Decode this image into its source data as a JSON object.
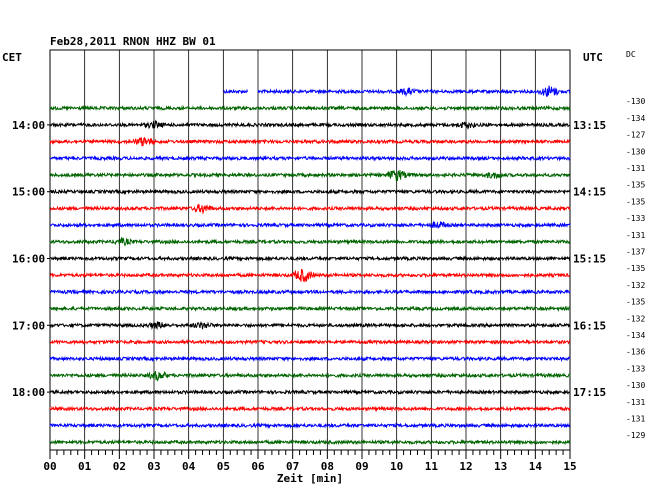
{
  "chart_data": {
    "type": "line",
    "title": "Feb28,2011   RNON HHZ BW 01",
    "left_zone": "CET",
    "right_zone": "UTC",
    "dc_label": "DC",
    "xlabel": "Zeit [min]",
    "xlim": [
      0,
      15
    ],
    "x_ticks": [
      "00",
      "01",
      "02",
      "03",
      "04",
      "05",
      "06",
      "07",
      "08",
      "09",
      "10",
      "11",
      "12",
      "13",
      "14",
      "15"
    ],
    "row_colors": [
      "#0000ff",
      "#006400",
      "#000000",
      "#ff0000"
    ],
    "rows": [
      {
        "row": 0,
        "left": "",
        "right": "",
        "dc": ""
      },
      {
        "row": 1,
        "left": "",
        "right": "",
        "dc": "-130"
      },
      {
        "row": 2,
        "left": "14:00",
        "right": "13:15",
        "dc": "-134"
      },
      {
        "row": 3,
        "left": "",
        "right": "",
        "dc": "-127"
      },
      {
        "row": 4,
        "left": "",
        "right": "",
        "dc": "-130"
      },
      {
        "row": 5,
        "left": "",
        "right": "",
        "dc": "-131"
      },
      {
        "row": 6,
        "left": "15:00",
        "right": "14:15",
        "dc": "-135"
      },
      {
        "row": 7,
        "left": "",
        "right": "",
        "dc": "-135"
      },
      {
        "row": 8,
        "left": "",
        "right": "",
        "dc": "-133"
      },
      {
        "row": 9,
        "left": "",
        "right": "",
        "dc": "-131"
      },
      {
        "row": 10,
        "left": "16:00",
        "right": "15:15",
        "dc": "-137"
      },
      {
        "row": 11,
        "left": "",
        "right": "",
        "dc": "-135"
      },
      {
        "row": 12,
        "left": "",
        "right": "",
        "dc": "-132"
      },
      {
        "row": 13,
        "left": "",
        "right": "",
        "dc": "-135"
      },
      {
        "row": 14,
        "left": "17:00",
        "right": "16:15",
        "dc": "-132"
      },
      {
        "row": 15,
        "left": "",
        "right": "",
        "dc": "-134"
      },
      {
        "row": 16,
        "left": "",
        "right": "",
        "dc": "-136"
      },
      {
        "row": 17,
        "left": "",
        "right": "",
        "dc": "-133"
      },
      {
        "row": 18,
        "left": "18:00",
        "right": "17:15",
        "dc": "-130"
      },
      {
        "row": 19,
        "left": "",
        "right": "",
        "dc": "-131"
      },
      {
        "row": 20,
        "left": "",
        "right": "",
        "dc": "-131"
      },
      {
        "row": 21,
        "left": "",
        "right": "",
        "dc": "-129"
      }
    ],
    "trace_start_min": 5.0,
    "trace_gap_min": [
      5.7,
      6.0
    ],
    "events": [
      {
        "row": 0,
        "min": 10.3,
        "strength": 2
      },
      {
        "row": 0,
        "min": 14.4,
        "strength": 4
      },
      {
        "row": 2,
        "min": 3.0,
        "strength": 2
      },
      {
        "row": 2,
        "min": 12.0,
        "strength": 2
      },
      {
        "row": 3,
        "min": 2.7,
        "strength": 3
      },
      {
        "row": 5,
        "min": 10.0,
        "strength": 4
      },
      {
        "row": 5,
        "min": 12.8,
        "strength": 2
      },
      {
        "row": 7,
        "min": 4.4,
        "strength": 3
      },
      {
        "row": 8,
        "min": 11.2,
        "strength": 2
      },
      {
        "row": 9,
        "min": 2.1,
        "strength": 2
      },
      {
        "row": 11,
        "min": 7.3,
        "strength": 5
      },
      {
        "row": 14,
        "min": 3.1,
        "strength": 2
      },
      {
        "row": 14,
        "min": 4.4,
        "strength": 2
      },
      {
        "row": 17,
        "min": 3.1,
        "strength": 3
      }
    ],
    "grid": true
  }
}
